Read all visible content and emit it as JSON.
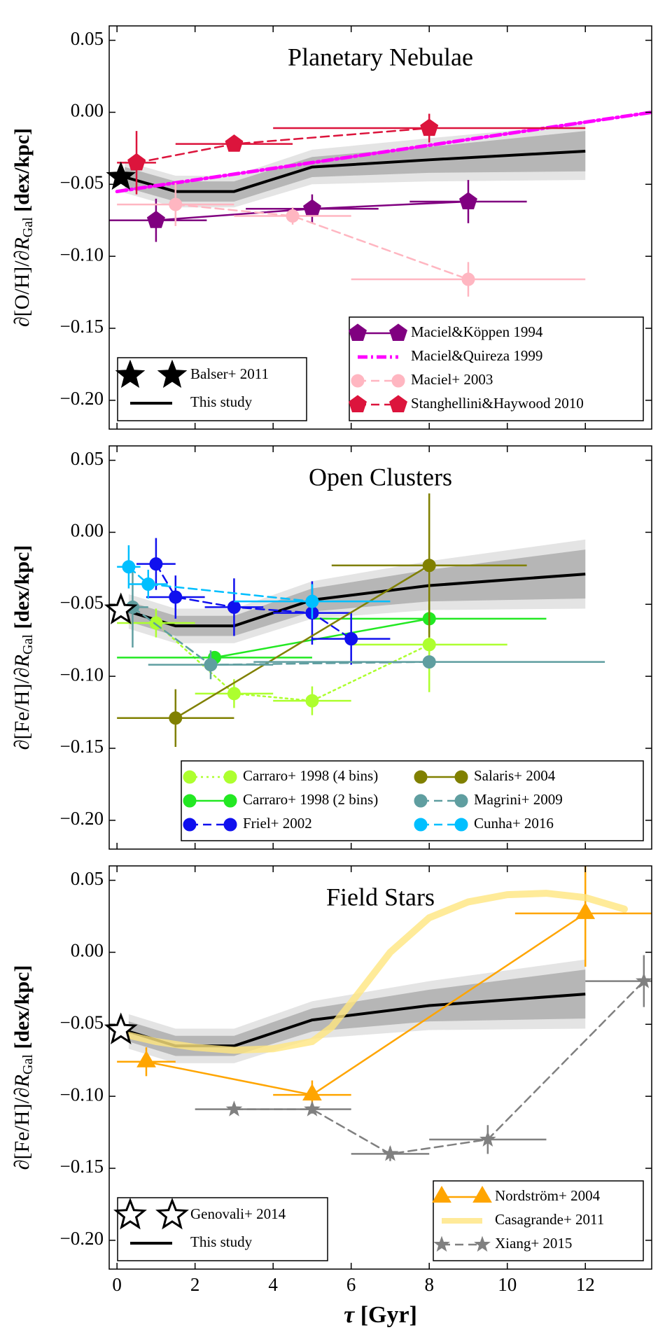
{
  "chart_data": [
    {
      "type": "line",
      "title": "Planetary Nebulae",
      "ylabel": [
        "∂[O/H]/∂",
        "R",
        "Gal",
        " [dex/kpc]"
      ],
      "xlim": [
        -0.2,
        13.7
      ],
      "xticks": [
        0,
        2,
        4,
        6,
        8,
        10,
        12
      ],
      "ylim": [
        -0.22,
        0.06
      ],
      "yticks": [
        {
          "value": 0.05,
          "label": "0.05"
        },
        {
          "value": 0,
          "label": "0.00"
        },
        {
          "value": -0.05,
          "label": "−0.05"
        },
        {
          "value": -0.1,
          "label": "−0.10"
        },
        {
          "value": -0.15,
          "label": "−0.15"
        },
        {
          "value": -0.2,
          "label": "−0.20"
        }
      ],
      "legend": "lower right",
      "series": [
        {
          "name": "Maciel&Köppen 1994",
          "color": "#800080",
          "marker": "pentagon",
          "linestyle": "solid",
          "x": [
            1.0,
            5.0,
            9.0
          ],
          "values": [
            -0.075,
            -0.067,
            -0.062
          ],
          "xerr": [
            1.3,
            1.7,
            1.5
          ],
          "yerr": [
            0.015,
            0.01,
            0.015
          ]
        },
        {
          "name": "Maciel&Quireza 1999",
          "color": "#ff00ff",
          "linestyle": "dashdot",
          "linewidth": 5,
          "x": [
            0,
            13.7
          ],
          "values": [
            -0.055,
            0.0
          ]
        },
        {
          "name": "Maciel+ 2003",
          "color": "#ffb6c1",
          "marker": "circle",
          "linestyle": "dashed",
          "x": [
            1.5,
            4.5,
            9.0
          ],
          "values": [
            -0.064,
            -0.072,
            -0.116
          ],
          "xerr": [
            1.5,
            1.5,
            3.0
          ],
          "yerr": [
            0.015,
            0.006,
            0.012
          ]
        },
        {
          "name": "Stanghellini&Haywood 2010",
          "color": "#dc143c",
          "marker": "pentagon",
          "linestyle": "dashed",
          "x": [
            0.5,
            3.0,
            8.0
          ],
          "values": [
            -0.035,
            -0.022,
            -0.011
          ],
          "xerr": [
            0.5,
            1.5,
            4.0
          ],
          "yerr": [
            0.022,
            0.004,
            0.01
          ]
        }
      ],
      "reference": {
        "name": "Balser+ 2011",
        "filled": true,
        "x": [
          0.1
        ],
        "values": [
          -0.045
        ]
      },
      "this_study": {
        "name": "This study",
        "color": "#000000",
        "x": [
          0.2,
          1.5,
          3,
          5,
          8,
          12
        ],
        "values": [
          -0.045,
          -0.055,
          -0.055,
          -0.038,
          -0.033,
          -0.027
        ],
        "bands": [
          {
            "color": "#dddddd",
            "lower": [
              -0.056,
              -0.066,
              -0.066,
              -0.05,
              -0.048,
              -0.047
            ],
            "upper": [
              -0.034,
              -0.044,
              -0.044,
              -0.026,
              -0.018,
              -0.008
            ]
          },
          {
            "color": "#aaaaaa",
            "lower": [
              -0.052,
              -0.062,
              -0.062,
              -0.045,
              -0.042,
              -0.041
            ],
            "upper": [
              -0.038,
              -0.048,
              -0.048,
              -0.031,
              -0.024,
              -0.013
            ]
          }
        ]
      }
    },
    {
      "type": "line",
      "title": "Open Clusters",
      "ylabel": [
        "∂[Fe/H]/∂",
        "R",
        "Gal",
        " [dex/kpc]"
      ],
      "xlim": [
        -0.2,
        13.7
      ],
      "xticks": [
        0,
        2,
        4,
        6,
        8,
        10,
        12
      ],
      "ylim": [
        -0.22,
        0.06
      ],
      "yticks": [
        {
          "value": 0.05,
          "label": "0.05"
        },
        {
          "value": 0,
          "label": "0.00"
        },
        {
          "value": -0.05,
          "label": "−0.05"
        },
        {
          "value": -0.1,
          "label": "−0.10"
        },
        {
          "value": -0.15,
          "label": "−0.15"
        },
        {
          "value": -0.2,
          "label": "−0.20"
        }
      ],
      "legend": "lower right",
      "legend_ncol": 2,
      "series": [
        {
          "name": "Carraro+ 1998 (4 bins)",
          "color": "#adff2f",
          "marker": "circle",
          "linestyle": "dotted",
          "x": [
            1.0,
            3.0,
            5.0,
            8.0
          ],
          "values": [
            -0.063,
            -0.112,
            -0.117,
            -0.078
          ],
          "xerr": [
            1.0,
            1.0,
            1.0,
            2.0
          ],
          "yerr": [
            0.01,
            0.01,
            0.01,
            0.033
          ]
        },
        {
          "name": "Carraro+ 1998 (2 bins)",
          "color": "#22e822",
          "marker": "circle",
          "linestyle": "solid",
          "x": [
            2.5,
            8.0
          ],
          "values": [
            -0.087,
            -0.06
          ],
          "xerr": [
            2.5,
            3.0
          ],
          "yerr": [
            0.003,
            0.01
          ]
        },
        {
          "name": "Friel+ 2002",
          "color": "#1010ee",
          "marker": "circle",
          "linestyle": "dashed",
          "x": [
            1.0,
            1.5,
            3.0,
            5.0,
            6.0
          ],
          "values": [
            -0.022,
            -0.045,
            -0.052,
            -0.056,
            -0.074
          ],
          "xerr": [
            0.5,
            0.75,
            0.75,
            1.0,
            1.0
          ],
          "yerr": [
            0.018,
            0.015,
            0.02,
            0.022,
            0.018
          ]
        },
        {
          "name": "Salaris+ 2004",
          "color": "#808000",
          "marker": "circle",
          "linestyle": "solid",
          "x": [
            1.5,
            8.0
          ],
          "values": [
            -0.129,
            -0.023
          ],
          "xerr": [
            1.5,
            2.5
          ],
          "yerr": [
            0.02,
            0.05
          ]
        },
        {
          "name": "Magrini+ 2009",
          "color": "#5f9ea0",
          "marker": "circle",
          "linestyle": "dashed",
          "x": [
            0.4,
            2.4,
            8.0
          ],
          "values": [
            -0.052,
            -0.092,
            -0.09
          ],
          "xerr": [
            0.4,
            1.6,
            4.5
          ],
          "yerr": [
            0.028,
            0.01,
            0.002
          ]
        },
        {
          "name": "Cunha+ 2016",
          "color": "#00bfff",
          "marker": "circle",
          "linestyle": "dashed",
          "x": [
            0.3,
            0.8,
            5.0
          ],
          "values": [
            -0.024,
            -0.036,
            -0.048
          ],
          "xerr": [
            0.3,
            0.5,
            2.0
          ],
          "yerr": [
            0.015,
            0.01,
            0.012
          ]
        }
      ],
      "reference": {
        "filled": false,
        "x": [
          0.1
        ],
        "values": [
          -0.054
        ]
      },
      "this_study": {
        "color": "#000000",
        "x": [
          0.3,
          1.5,
          3,
          5,
          8,
          12
        ],
        "values": [
          -0.055,
          -0.065,
          -0.065,
          -0.047,
          -0.037,
          -0.029
        ],
        "bands": [
          {
            "color": "#dddddd",
            "lower": [
              -0.067,
              -0.077,
              -0.077,
              -0.06,
              -0.054,
              -0.053
            ],
            "upper": [
              -0.043,
              -0.053,
              -0.053,
              -0.034,
              -0.02,
              -0.005
            ]
          },
          {
            "color": "#aaaaaa",
            "lower": [
              -0.062,
              -0.072,
              -0.072,
              -0.055,
              -0.048,
              -0.046
            ],
            "upper": [
              -0.048,
              -0.058,
              -0.058,
              -0.039,
              -0.026,
              -0.012
            ]
          }
        ]
      }
    },
    {
      "type": "line",
      "title": "Field Stars",
      "ylabel": [
        "∂[Fe/H]/∂",
        "R",
        "Gal",
        " [dex/kpc]"
      ],
      "xlabel": [
        "τ",
        " [Gyr]"
      ],
      "xlim": [
        -0.2,
        13.7
      ],
      "xticks": [
        0,
        2,
        4,
        6,
        8,
        10,
        12
      ],
      "ylim": [
        -0.22,
        0.06
      ],
      "yticks": [
        {
          "value": 0.05,
          "label": "0.05"
        },
        {
          "value": 0,
          "label": "0.00"
        },
        {
          "value": -0.05,
          "label": "−0.05"
        },
        {
          "value": -0.1,
          "label": "−0.10"
        },
        {
          "value": -0.15,
          "label": "−0.15"
        },
        {
          "value": -0.2,
          "label": "−0.20"
        }
      ],
      "legend": "lower right",
      "series": [
        {
          "name": "Nordström+ 2004",
          "color": "#ffa500",
          "marker": "triangle",
          "linestyle": "solid",
          "x": [
            0.75,
            5.0,
            12.0
          ],
          "values": [
            -0.076,
            -0.099,
            0.027
          ],
          "xerr": [
            0.75,
            1.0,
            1.8
          ],
          "yerr": [
            0.01,
            0.01,
            0.037
          ]
        },
        {
          "name": "Casagrande+ 2011",
          "color": "#ffe680",
          "linestyle": "solid",
          "linewidth": 10,
          "alpha": 0.8,
          "x": [
            0.2,
            1,
            2,
            3,
            4,
            5,
            5.5,
            6,
            7,
            8,
            9,
            10,
            11,
            12,
            13
          ],
          "values": [
            -0.057,
            -0.062,
            -0.066,
            -0.068,
            -0.067,
            -0.062,
            -0.052,
            -0.035,
            0.0,
            0.024,
            0.035,
            0.04,
            0.041,
            0.038,
            0.03
          ]
        },
        {
          "name": "Xiang+ 2015",
          "color": "#808080",
          "marker": "star",
          "linestyle": "dashed",
          "x": [
            3.0,
            5.0,
            7.0,
            9.5,
            13.5
          ],
          "values": [
            -0.109,
            -0.109,
            -0.14,
            -0.13,
            -0.02
          ],
          "xerr": [
            1.0,
            1.0,
            1.0,
            1.5,
            1.5
          ],
          "yerr": [
            0.002,
            0.003,
            0.005,
            0.01,
            0.018
          ]
        }
      ],
      "reference": {
        "name": "Genovali+ 2014",
        "filled": false,
        "x": [
          0.1
        ],
        "values": [
          -0.054
        ]
      },
      "this_study": {
        "name": "This study",
        "color": "#000000",
        "x": [
          0.3,
          1.5,
          3,
          5,
          8,
          12
        ],
        "values": [
          -0.055,
          -0.065,
          -0.065,
          -0.047,
          -0.037,
          -0.029
        ],
        "bands": [
          {
            "color": "#dddddd",
            "lower": [
              -0.067,
              -0.077,
              -0.077,
              -0.06,
              -0.054,
              -0.053
            ],
            "upper": [
              -0.043,
              -0.053,
              -0.053,
              -0.034,
              -0.02,
              -0.005
            ]
          },
          {
            "color": "#aaaaaa",
            "lower": [
              -0.062,
              -0.072,
              -0.072,
              -0.055,
              -0.048,
              -0.046
            ],
            "upper": [
              -0.048,
              -0.058,
              -0.058,
              -0.039,
              -0.026,
              -0.012
            ]
          }
        ]
      }
    }
  ]
}
